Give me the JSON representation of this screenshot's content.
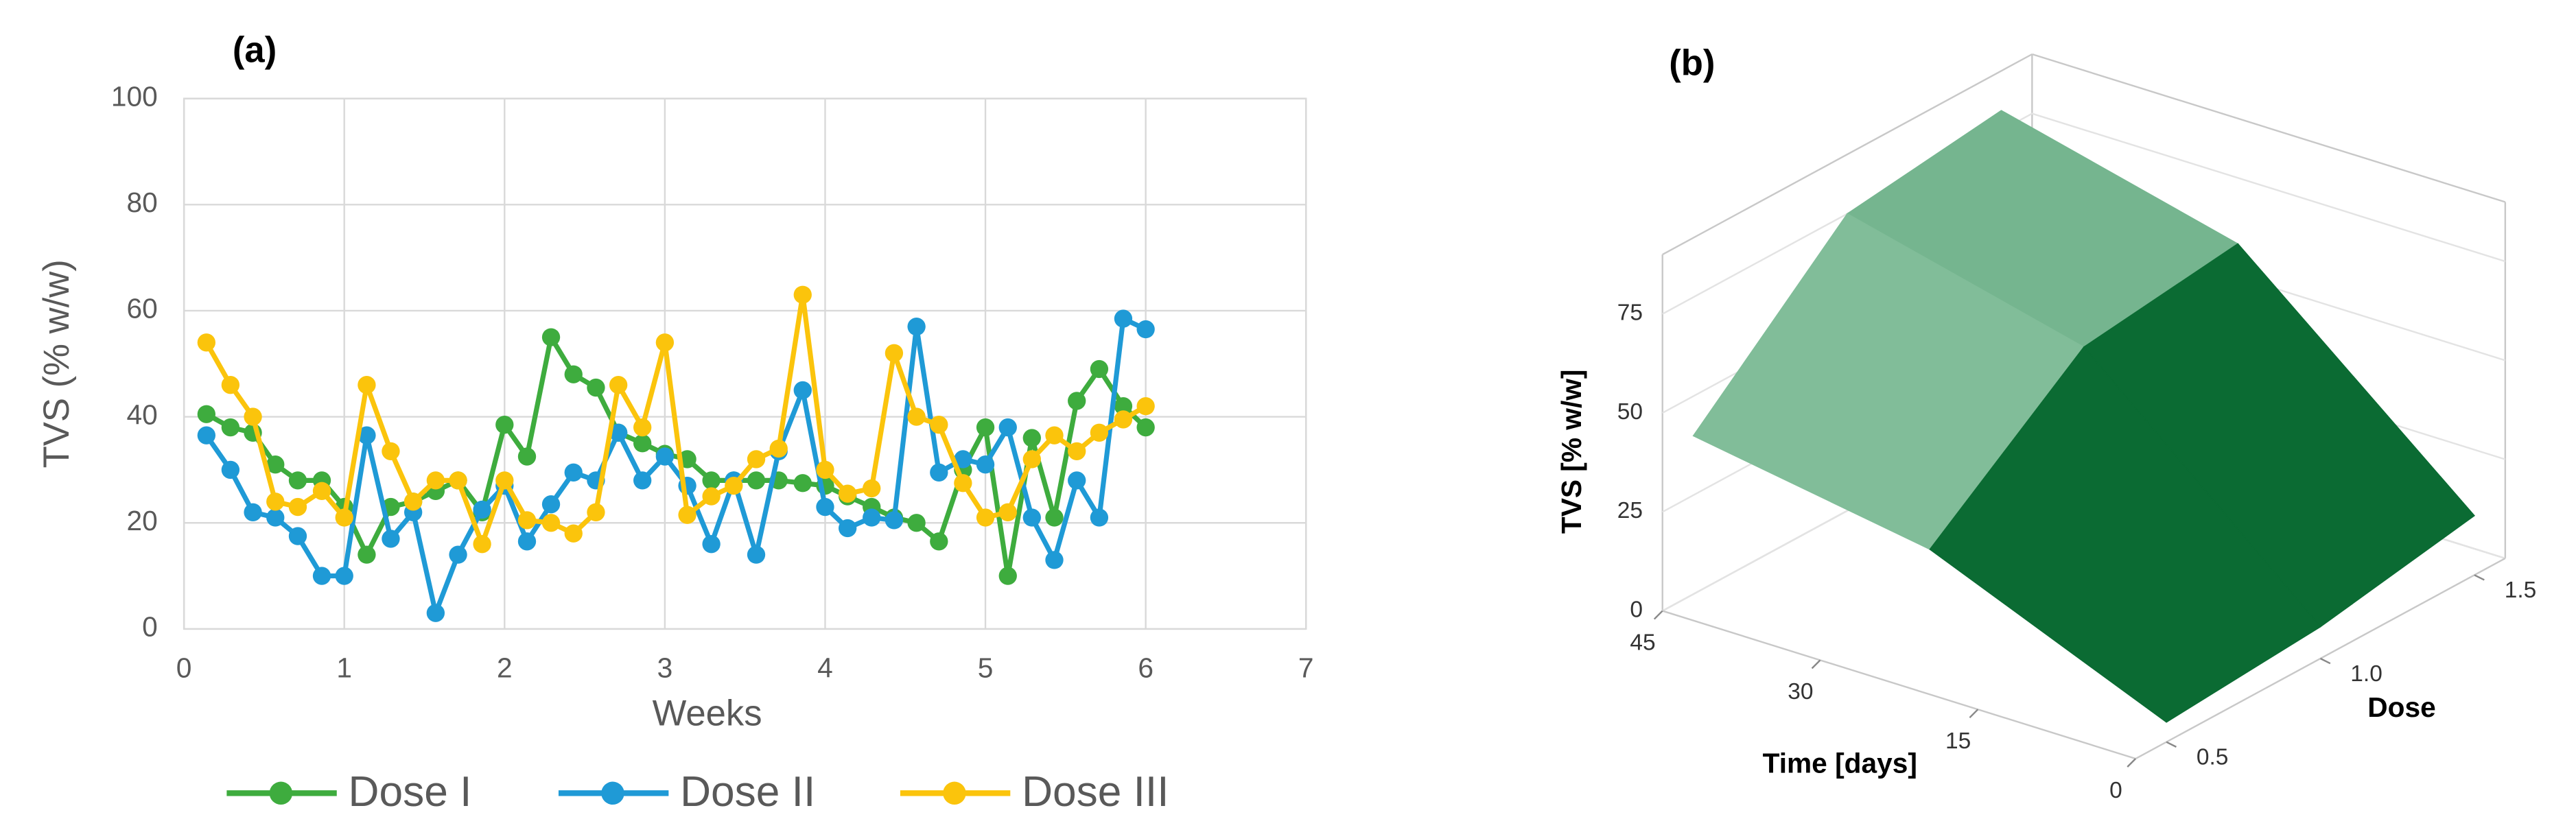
{
  "chart_data": [
    {
      "type": "line",
      "panel_label": "(a)",
      "xlabel": "Weeks",
      "ylabel": "TVS (% w/w)",
      "x": [
        0.14,
        0.29,
        0.43,
        0.57,
        0.71,
        0.86,
        1.0,
        1.14,
        1.29,
        1.43,
        1.57,
        1.71,
        1.86,
        2.0,
        2.14,
        2.29,
        2.43,
        2.57,
        2.71,
        2.86,
        3.0,
        3.14,
        3.29,
        3.43,
        3.57,
        3.71,
        3.86,
        4.0,
        4.14,
        4.29,
        4.43,
        4.57,
        4.71,
        4.86,
        5.0,
        5.14,
        5.29,
        5.43,
        5.57,
        5.71,
        5.86,
        6.0
      ],
      "series": [
        {
          "name": "Dose I",
          "color": "#3eac3e",
          "values": [
            40.5,
            38,
            37,
            31,
            28,
            28,
            23,
            14,
            23,
            24,
            26,
            28,
            22,
            38.5,
            32.5,
            55,
            48,
            45.5,
            37,
            35,
            33,
            32,
            28,
            28,
            28,
            28,
            27.5,
            27,
            25,
            23,
            21,
            20,
            16.5,
            30,
            38,
            10,
            36,
            21,
            43,
            49,
            42,
            38
          ]
        },
        {
          "name": "Dose II",
          "color": "#1f9ad6",
          "values": [
            36.5,
            30,
            22,
            21,
            17.5,
            10,
            10,
            36.5,
            17,
            22,
            3,
            14,
            22.5,
            27,
            16.5,
            23.5,
            29.5,
            28,
            37,
            28,
            32.5,
            27,
            16,
            28,
            14,
            33.5,
            45,
            23,
            19,
            21,
            20.5,
            57,
            29.5,
            32,
            31,
            38,
            21,
            13,
            28,
            21,
            58.5,
            56.5
          ]
        },
        {
          "name": "Dose III",
          "color": "#fbc40c",
          "values": [
            54,
            46,
            40,
            24,
            23,
            26,
            21,
            46,
            33.5,
            24,
            28,
            28,
            16,
            28,
            20.5,
            20,
            18,
            22,
            46,
            38,
            54,
            21.5,
            25,
            27,
            32,
            34,
            63,
            30,
            25.5,
            26.5,
            52,
            40,
            38.5,
            27.5,
            21,
            22,
            32,
            36.5,
            33.5,
            37,
            39.5,
            42
          ]
        }
      ],
      "xlim": [
        0,
        7
      ],
      "xticks": [
        0,
        1,
        2,
        3,
        4,
        5,
        6,
        7
      ],
      "ylim": [
        0,
        100
      ],
      "yticks": [
        0,
        20,
        40,
        60,
        80,
        100
      ],
      "grid": true,
      "legend": "bottom"
    },
    {
      "type": "surface",
      "panel_label": "(b)",
      "xlabel": "Time [days]",
      "ylabel": "Dose",
      "zlabel": "TVS [% w/w]",
      "x": [
        0,
        22.5,
        45
      ],
      "y": [
        0.5,
        1.0,
        1.5
      ],
      "z": [
        [
          5,
          8,
          15
        ],
        [
          30,
          60,
          65
        ],
        [
          40,
          75,
          80
        ]
      ],
      "xlim": [
        0,
        45
      ],
      "xticks": [
        0,
        15,
        30,
        45
      ],
      "ylim": [
        0.4,
        1.6
      ],
      "yticks": [
        0.5,
        {
          "value": 1,
          "label": "1.0"
        },
        1.5
      ],
      "zlim": [
        0,
        90
      ],
      "zticks": [
        0,
        25,
        50,
        75
      ],
      "colors": [
        "#0b6b33",
        "#d9fbe6"
      ]
    }
  ]
}
